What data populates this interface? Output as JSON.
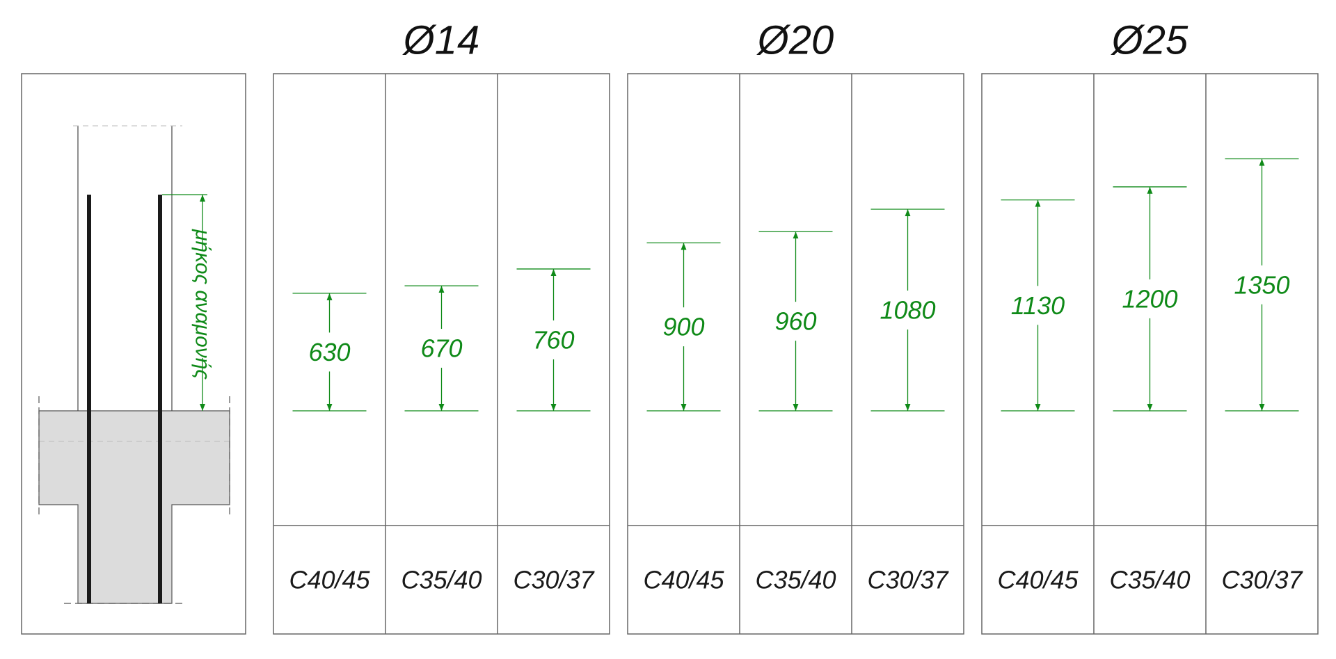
{
  "colors": {
    "dimension": "#0f8a18",
    "text": "#1a1a1a",
    "frame": "#666666",
    "concrete_fill": "#dcdcdc",
    "rebar": "#1a1a1a"
  },
  "detail": {
    "label": "μήκος αναμονής"
  },
  "chart_data": {
    "type": "table",
    "groups": [
      {
        "title": "Ø14",
        "columns": [
          {
            "grade": "C40/45",
            "value": 630
          },
          {
            "grade": "C35/40",
            "value": 670
          },
          {
            "grade": "C30/37",
            "value": 760
          }
        ]
      },
      {
        "title": "Ø20",
        "columns": [
          {
            "grade": "C40/45",
            "value": 900
          },
          {
            "grade": "C35/40",
            "value": 960
          },
          {
            "grade": "C30/37",
            "value": 1080
          }
        ]
      },
      {
        "title": "Ø25",
        "columns": [
          {
            "grade": "C40/45",
            "value": 1130
          },
          {
            "grade": "C35/40",
            "value": 1200
          },
          {
            "grade": "C30/37",
            "value": 1350
          }
        ]
      }
    ]
  }
}
